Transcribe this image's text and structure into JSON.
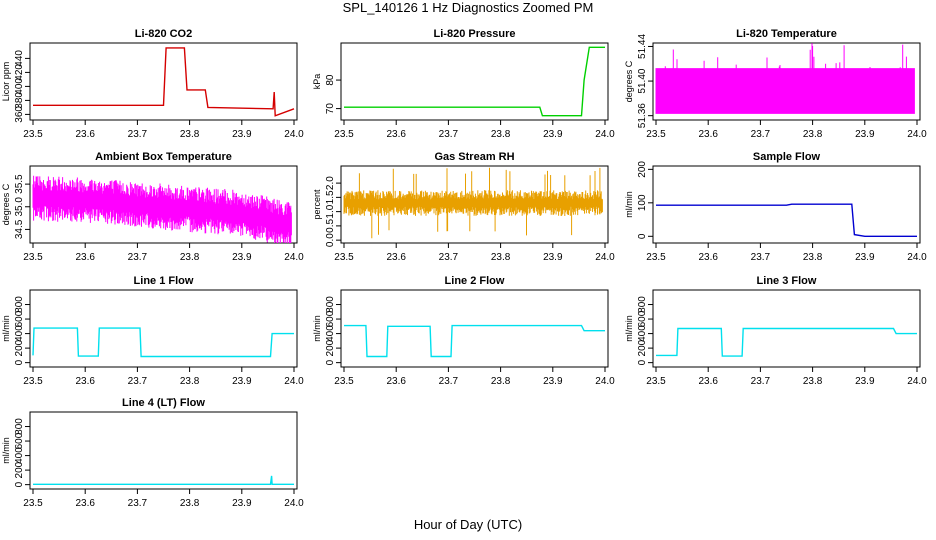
{
  "title": "SPL_140126 1 Hz Diagnostics Zoomed PM",
  "x_axis_label": "Hour of Day (UTC)",
  "chart_data": [
    {
      "type": "line",
      "title": "Li-820 CO2",
      "ylabel": "Licor ppm",
      "color": "#d40000",
      "xlim": [
        23.5,
        24.0
      ],
      "ylim": [
        352,
        462
      ],
      "xticks": [
        "23.5",
        "23.6",
        "23.7",
        "23.8",
        "23.9",
        "24.0"
      ],
      "yticks": [
        "360",
        "380",
        "400",
        "420",
        "440"
      ],
      "series": [
        {
          "x": [
            23.5,
            23.75,
            23.755,
            23.79,
            23.795,
            23.83,
            23.835,
            23.96,
            23.962,
            23.964,
            24.0
          ],
          "y": [
            373,
            373,
            455,
            455,
            395,
            395,
            370,
            368,
            392,
            358,
            368
          ]
        }
      ]
    },
    {
      "type": "line",
      "title": "Li-820 Pressure",
      "ylabel": "kPa",
      "color": "#00d000",
      "xlim": [
        23.5,
        24.0
      ],
      "ylim": [
        66,
        93
      ],
      "xticks": [
        "23.5",
        "23.6",
        "23.7",
        "23.8",
        "23.9",
        "24.0"
      ],
      "yticks": [
        "70",
        "80"
      ],
      "series": [
        {
          "x": [
            23.5,
            23.875,
            23.88,
            23.955,
            23.96,
            23.97,
            24.0
          ],
          "y": [
            70.5,
            70.5,
            67.5,
            67.5,
            80,
            91.5,
            91.5
          ]
        }
      ]
    },
    {
      "type": "line",
      "title": "Li-820 Temperature",
      "ylabel": "degrees C",
      "color": "#ff00ff",
      "xlim": [
        23.5,
        24.0
      ],
      "ylim": [
        51.355,
        51.444
      ],
      "xticks": [
        "23.5",
        "23.6",
        "23.7",
        "23.8",
        "23.9",
        "24.0"
      ],
      "yticks": [
        "51.36",
        "51.40",
        "51.44"
      ],
      "series": [
        {
          "x": [
            23.5,
            23.995
          ],
          "y": [
            51.362,
            51.415
          ]
        }
      ]
    },
    {
      "type": "line",
      "title": "Ambient Box Temperature",
      "ylabel": "degrees C",
      "color": "#ff00ff",
      "xlim": [
        23.5,
        24.0
      ],
      "ylim": [
        34.2,
        35.9
      ],
      "xticks": [
        "23.5",
        "23.6",
        "23.7",
        "23.8",
        "23.9",
        "24.0"
      ],
      "yticks": [
        "34.5",
        "35.0",
        "35.5"
      ],
      "series": [
        {
          "x": [
            23.5,
            23.6,
            23.7,
            23.8,
            23.9,
            23.995
          ],
          "y": [
            35.2,
            35.15,
            35.05,
            34.95,
            34.85,
            34.6
          ]
        }
      ]
    },
    {
      "type": "line",
      "title": "Gas Stream RH",
      "ylabel": "percent",
      "color": "#e8a000",
      "xlim": [
        23.5,
        24.0
      ],
      "ylim": [
        -0.1,
        2.6
      ],
      "xticks": [
        "23.5",
        "23.6",
        "23.7",
        "23.8",
        "23.9",
        "24.0"
      ],
      "yticks": [
        "0.0",
        "0.5",
        "1.0",
        "1.5",
        "2.0"
      ],
      "series": [
        {
          "x": [
            23.5,
            23.995
          ],
          "y": [
            1.3,
            1.3
          ]
        }
      ]
    },
    {
      "type": "line",
      "title": "Sample Flow",
      "ylabel": "ml/min",
      "color": "#0000d0",
      "xlim": [
        23.5,
        24.0
      ],
      "ylim": [
        -20,
        210
      ],
      "xticks": [
        "23.5",
        "23.6",
        "23.7",
        "23.8",
        "23.9",
        "24.0"
      ],
      "yticks": [
        "0",
        "100",
        "200"
      ],
      "series": [
        {
          "x": [
            23.5,
            23.75,
            23.76,
            23.875,
            23.88,
            23.9,
            24.0
          ],
          "y": [
            93,
            93,
            96,
            96,
            5,
            0,
            0
          ]
        }
      ]
    },
    {
      "type": "line",
      "title": "Line 1 Flow",
      "ylabel": "ml/min",
      "color": "#00e0ee",
      "xlim": [
        23.5,
        24.0
      ],
      "ylim": [
        -60,
        1000
      ],
      "xticks": [
        "23.5",
        "23.6",
        "23.7",
        "23.8",
        "23.9",
        "24.0"
      ],
      "yticks": [
        "0",
        "200",
        "400",
        "600",
        "800"
      ],
      "series": [
        {
          "x": [
            23.5,
            23.502,
            23.585,
            23.587,
            23.625,
            23.627,
            23.705,
            23.707,
            23.955,
            23.958,
            24.0
          ],
          "y": [
            100,
            475,
            475,
            90,
            90,
            475,
            475,
            85,
            85,
            400,
            400
          ]
        }
      ]
    },
    {
      "type": "line",
      "title": "Line 2 Flow",
      "ylabel": "ml/min",
      "color": "#00e0ee",
      "xlim": [
        23.5,
        24.0
      ],
      "ylim": [
        -60,
        1000
      ],
      "xticks": [
        "23.5",
        "23.6",
        "23.7",
        "23.8",
        "23.9",
        "24.0"
      ],
      "yticks": [
        "0",
        "200",
        "400",
        "600",
        "800"
      ],
      "series": [
        {
          "x": [
            23.5,
            23.542,
            23.544,
            23.582,
            23.584,
            23.665,
            23.667,
            23.705,
            23.707,
            23.955,
            23.96,
            24.0
          ],
          "y": [
            510,
            510,
            85,
            85,
            500,
            500,
            85,
            85,
            510,
            510,
            440,
            440
          ]
        }
      ]
    },
    {
      "type": "line",
      "title": "Line 3 Flow",
      "ylabel": "ml/min",
      "color": "#00e0ee",
      "xlim": [
        23.5,
        24.0
      ],
      "ylim": [
        -60,
        1000
      ],
      "xticks": [
        "23.5",
        "23.6",
        "23.7",
        "23.8",
        "23.9",
        "24.0"
      ],
      "yticks": [
        "0",
        "200",
        "400",
        "600",
        "800"
      ],
      "series": [
        {
          "x": [
            23.5,
            23.502,
            23.54,
            23.542,
            23.625,
            23.627,
            23.665,
            23.667,
            23.955,
            23.96,
            24.0
          ],
          "y": [
            100,
            100,
            100,
            470,
            470,
            90,
            90,
            470,
            470,
            400,
            400
          ]
        }
      ]
    },
    {
      "type": "line",
      "title": "Line 4 (LT) Flow",
      "ylabel": "ml/min",
      "color": "#00e0ee",
      "xlim": [
        23.5,
        24.0
      ],
      "ylim": [
        -60,
        1000
      ],
      "xticks": [
        "23.5",
        "23.6",
        "23.7",
        "23.8",
        "23.9",
        "24.0"
      ],
      "yticks": [
        "0",
        "200",
        "400",
        "600",
        "800"
      ],
      "series": [
        {
          "x": [
            23.5,
            23.955,
            23.957,
            23.958,
            24.0
          ],
          "y": [
            5,
            5,
            120,
            5,
            5
          ]
        }
      ]
    }
  ]
}
